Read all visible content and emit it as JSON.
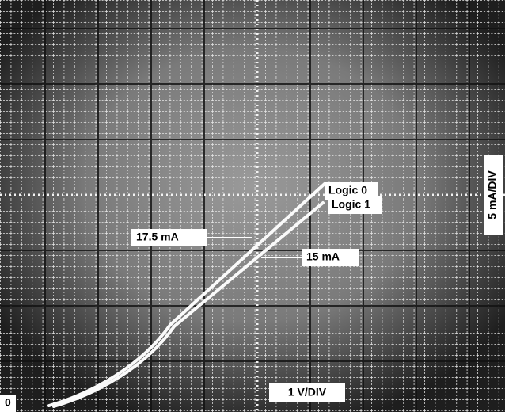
{
  "labels": {
    "logic_0": "Logic 0",
    "logic_1": "Logic 1",
    "current_high": "17.5 mA",
    "current_low": "15 mA",
    "vertical_scale": "5 mA/DIV",
    "horizontal_scale": "1 V/DIV",
    "origin": "0"
  }
}
